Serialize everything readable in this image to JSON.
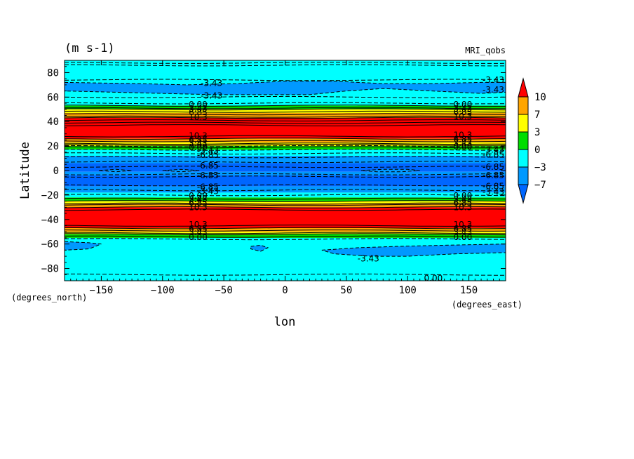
{
  "chart_data": {
    "type": "heatmap",
    "units_label": "(m s-1)",
    "model_label": "MRI_qobs",
    "xlabel": "lon",
    "ylabel": "Latitude",
    "x_units": "(degrees_east)",
    "y_units": "(degrees_north)",
    "xlim": [
      -180,
      180
    ],
    "ylim": [
      -90,
      90
    ],
    "x_ticks": [
      -150,
      -100,
      -50,
      0,
      50,
      100,
      150
    ],
    "y_ticks": [
      -80,
      -60,
      -40,
      -20,
      0,
      20,
      40,
      60,
      80
    ],
    "colorbar": {
      "tick_labels": [
        "10",
        "7",
        "3",
        "0",
        "−3",
        "−7"
      ],
      "colors": [
        "#ff0000",
        "#ffa500",
        "#ffff00",
        "#00dd00",
        "#00ffff",
        "#0099ff",
        "#0066ff"
      ]
    },
    "bands": [
      {
        "lat_from": 86,
        "lat_to": 90,
        "color": "#00ffff"
      },
      {
        "lat_from": 59,
        "lat_to": 86,
        "color": "#00ffff"
      },
      {
        "lat_from": 53,
        "lat_to": 59,
        "color": "#00ffff"
      },
      {
        "lat_from": 50,
        "lat_to": 53,
        "color": "#00dd00"
      },
      {
        "lat_from": 47,
        "lat_to": 50,
        "color": "#ffff00"
      },
      {
        "lat_from": 43,
        "lat_to": 47,
        "color": "#ffa500"
      },
      {
        "lat_from": 26,
        "lat_to": 43,
        "color": "#ff0000"
      },
      {
        "lat_from": 23,
        "lat_to": 26,
        "color": "#ffa500"
      },
      {
        "lat_from": 20,
        "lat_to": 23,
        "color": "#ffff00"
      },
      {
        "lat_from": 17,
        "lat_to": 20,
        "color": "#00dd00"
      },
      {
        "lat_from": 12,
        "lat_to": 17,
        "color": "#00ffff"
      },
      {
        "lat_from": 6,
        "lat_to": 12,
        "color": "#0099ff"
      },
      {
        "lat_from": -1,
        "lat_to": 6,
        "color": "#0066ff"
      },
      {
        "lat_from": -4,
        "lat_to": -1,
        "color": "#0099ff"
      },
      {
        "lat_from": -13,
        "lat_to": -4,
        "color": "#0066ff"
      },
      {
        "lat_from": -18,
        "lat_to": -13,
        "color": "#0099ff"
      },
      {
        "lat_from": -22,
        "lat_to": -18,
        "color": "#00ffff"
      },
      {
        "lat_from": -25,
        "lat_to": -22,
        "color": "#00dd00"
      },
      {
        "lat_from": -27,
        "lat_to": -25,
        "color": "#ffff00"
      },
      {
        "lat_from": -30,
        "lat_to": -27,
        "color": "#ffa500"
      },
      {
        "lat_from": -47,
        "lat_to": -30,
        "color": "#ff0000"
      },
      {
        "lat_from": -50,
        "lat_to": -47,
        "color": "#ffa500"
      },
      {
        "lat_from": -52,
        "lat_to": -50,
        "color": "#ffff00"
      },
      {
        "lat_from": -55,
        "lat_to": -52,
        "color": "#00dd00"
      },
      {
        "lat_from": -90,
        "lat_to": -55,
        "color": "#00ffff"
      }
    ],
    "regions": [
      {
        "color": "#0099ff",
        "points": [
          [
            -180,
            72
          ],
          [
            -120,
            71
          ],
          [
            -80,
            70
          ],
          [
            -40,
            71
          ],
          [
            0,
            73
          ],
          [
            40,
            73
          ],
          [
            80,
            71
          ],
          [
            120,
            71
          ],
          [
            160,
            72
          ],
          [
            180,
            72
          ],
          [
            180,
            64
          ],
          [
            160,
            63
          ],
          [
            120,
            65
          ],
          [
            80,
            67
          ],
          [
            50,
            65
          ],
          [
            20,
            62
          ],
          [
            -20,
            62
          ],
          [
            -60,
            62
          ],
          [
            -100,
            63
          ],
          [
            -140,
            64
          ],
          [
            -180,
            65
          ]
        ]
      },
      {
        "color": "#0099ff",
        "points": [
          [
            -180,
            -58
          ],
          [
            -160,
            -59
          ],
          [
            -150,
            -60
          ],
          [
            -160,
            -64
          ],
          [
            -180,
            -65
          ]
        ]
      },
      {
        "color": "#0099ff",
        "points": [
          [
            -28,
            -62
          ],
          [
            -20,
            -61
          ],
          [
            -14,
            -63
          ],
          [
            -20,
            -66
          ],
          [
            -28,
            -64
          ]
        ]
      },
      {
        "color": "#0099ff",
        "points": [
          [
            30,
            -65
          ],
          [
            60,
            -63
          ],
          [
            90,
            -62
          ],
          [
            130,
            -61
          ],
          [
            180,
            -60
          ],
          [
            180,
            -67
          ],
          [
            140,
            -68
          ],
          [
            100,
            -70
          ],
          [
            70,
            -70
          ],
          [
            40,
            -68
          ]
        ]
      },
      {
        "color": "#0099ff",
        "points": [
          [
            -152,
            0
          ],
          [
            -138,
            1
          ],
          [
            -125,
            0
          ],
          [
            -138,
            -1
          ]
        ]
      },
      {
        "color": "#0099ff",
        "points": [
          [
            -100,
            0
          ],
          [
            -85,
            1
          ],
          [
            -70,
            0
          ],
          [
            -85,
            -1
          ]
        ]
      },
      {
        "color": "#0099ff",
        "points": [
          [
            62,
            0
          ],
          [
            80,
            1
          ],
          [
            100,
            1
          ],
          [
            110,
            0
          ],
          [
            95,
            -1
          ],
          [
            75,
            -1
          ]
        ]
      }
    ],
    "dashed_contours": [
      88,
      86,
      74,
      60,
      55,
      20,
      17,
      14,
      11,
      7,
      3,
      -3,
      -5,
      -12,
      -16,
      -20,
      -56,
      -85
    ],
    "solid_contours": [
      53,
      51,
      50,
      48,
      46,
      44,
      43,
      41,
      39,
      37,
      28,
      26,
      24,
      22,
      21,
      19,
      -23,
      -25,
      -27,
      -28,
      -30,
      -32,
      -45,
      -47,
      -49,
      -51,
      -52,
      -54
    ],
    "contour_labels": [
      {
        "text": "-3.43",
        "lon": -60,
        "lat": 71.5
      },
      {
        "text": "-3.43",
        "lon": -60,
        "lat": 61
      },
      {
        "text": "0.00",
        "lon": -71,
        "lat": 54
      },
      {
        "text": "3.43",
        "lon": -71,
        "lat": 50.5
      },
      {
        "text": "6.85",
        "lon": -71,
        "lat": 47.5
      },
      {
        "text": "10.3",
        "lon": -71,
        "lat": 43.5
      },
      {
        "text": "10.3",
        "lon": -71,
        "lat": 28.5
      },
      {
        "text": "6.85",
        "lon": -71,
        "lat": 25
      },
      {
        "text": "3.43",
        "lon": -71,
        "lat": 22
      },
      {
        "text": "0.00",
        "lon": -71,
        "lat": 19
      },
      {
        "text": "-3.43",
        "lon": -63,
        "lat": 16
      },
      {
        "text": "-6.85",
        "lon": -63,
        "lat": 12.5
      },
      {
        "text": "-6.85",
        "lon": -63,
        "lat": 4
      },
      {
        "text": "-6.85",
        "lon": -63,
        "lat": -4
      },
      {
        "text": "-6.85",
        "lon": -63,
        "lat": -13.5
      },
      {
        "text": "-3.43",
        "lon": -63,
        "lat": -17
      },
      {
        "text": "0.00",
        "lon": -71,
        "lat": -20.5
      },
      {
        "text": "3.43",
        "lon": -71,
        "lat": -23.5
      },
      {
        "text": "6.85",
        "lon": -71,
        "lat": -26.5
      },
      {
        "text": "10.3",
        "lon": -71,
        "lat": -30
      },
      {
        "text": "10.3",
        "lon": -71,
        "lat": -44
      },
      {
        "text": "6.85",
        "lon": -71,
        "lat": -47.5
      },
      {
        "text": "3.43",
        "lon": -71,
        "lat": -50.5
      },
      {
        "text": "0.00",
        "lon": -71,
        "lat": -54.5
      },
      {
        "text": "-3.43",
        "lon": 170,
        "lat": 74
      },
      {
        "text": "-3.43",
        "lon": 170,
        "lat": 66
      },
      {
        "text": "0.00",
        "lon": 145,
        "lat": 54
      },
      {
        "text": "3.43",
        "lon": 145,
        "lat": 50.5
      },
      {
        "text": "6.85",
        "lon": 145,
        "lat": 47.5
      },
      {
        "text": "10.3",
        "lon": 145,
        "lat": 44
      },
      {
        "text": "10.3",
        "lon": 145,
        "lat": 29
      },
      {
        "text": "6.85",
        "lon": 145,
        "lat": 25.5
      },
      {
        "text": "3.43",
        "lon": 145,
        "lat": 22.5
      },
      {
        "text": "0.00",
        "lon": 145,
        "lat": 19.5
      },
      {
        "text": "-3.43",
        "lon": 170,
        "lat": 17
      },
      {
        "text": "-6.85",
        "lon": 170,
        "lat": 13
      },
      {
        "text": "-6.85",
        "lon": 170,
        "lat": 3
      },
      {
        "text": "-6.85",
        "lon": 170,
        "lat": -4
      },
      {
        "text": "-6.85",
        "lon": 170,
        "lat": -13
      },
      {
        "text": "-3.43",
        "lon": 170,
        "lat": -17.5
      },
      {
        "text": "0.00",
        "lon": 145,
        "lat": -20.5
      },
      {
        "text": "3.43",
        "lon": 145,
        "lat": -23.5
      },
      {
        "text": "6.85",
        "lon": 145,
        "lat": -26.5
      },
      {
        "text": "10.3",
        "lon": 145,
        "lat": -30
      },
      {
        "text": "10.3",
        "lon": 145,
        "lat": -44
      },
      {
        "text": "6.85",
        "lon": 145,
        "lat": -47.5
      },
      {
        "text": "3.43",
        "lon": 145,
        "lat": -50.5
      },
      {
        "text": "0.00",
        "lon": 145,
        "lat": -54.5
      },
      {
        "text": "-3.43",
        "lon": 68,
        "lat": -72
      },
      {
        "text": "0.00",
        "lon": 121,
        "lat": -88
      }
    ]
  }
}
